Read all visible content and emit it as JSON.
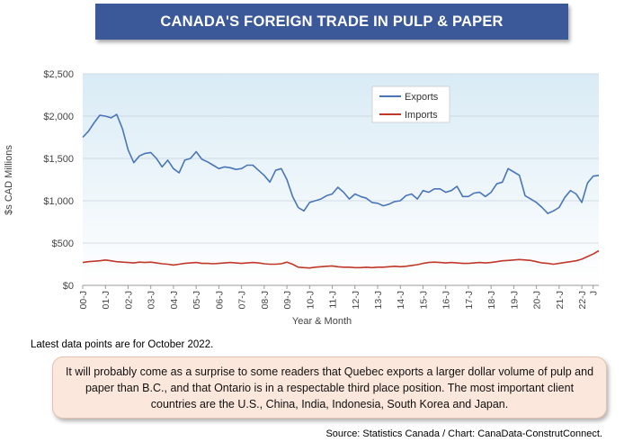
{
  "header": {
    "title": "CANADA'S FOREIGN TRADE IN PULP & PAPER"
  },
  "chart_data": {
    "type": "line",
    "title": "",
    "xlabel": "Year & Month",
    "ylabel": "$s CAD Millions",
    "ylim": [
      0,
      2500
    ],
    "yticks": [
      0,
      500,
      1000,
      1500,
      2000,
      2500
    ],
    "ytick_labels": [
      "$0",
      "$500",
      "$1,000",
      "$1,500",
      "$2,000",
      "$2,500"
    ],
    "x_start": "2000-01",
    "x_end": "2022-10",
    "x_tick_labels": [
      "00-J",
      "01-J",
      "02-J",
      "03-J",
      "04-J",
      "05-J",
      "06-J",
      "07-J",
      "08-J",
      "09-J",
      "10-J",
      "11-J",
      "12-J",
      "13-J",
      "14-J",
      "15-J",
      "16-J",
      "17-J",
      "18-J",
      "19-J",
      "20-J",
      "21-J",
      "22-J",
      "J"
    ],
    "grid": "horizontal",
    "legend_position": "top-center",
    "series": [
      {
        "name": "Exports",
        "color": "#4a76b8",
        "x": [
          "2000-01",
          "2000-04",
          "2000-07",
          "2000-10",
          "2001-01",
          "2001-04",
          "2001-07",
          "2001-10",
          "2002-01",
          "2002-04",
          "2002-07",
          "2002-10",
          "2003-01",
          "2003-04",
          "2003-07",
          "2003-10",
          "2004-01",
          "2004-04",
          "2004-07",
          "2004-10",
          "2005-01",
          "2005-04",
          "2005-07",
          "2005-10",
          "2006-01",
          "2006-04",
          "2006-07",
          "2006-10",
          "2007-01",
          "2007-04",
          "2007-07",
          "2007-10",
          "2008-01",
          "2008-04",
          "2008-07",
          "2008-10",
          "2009-01",
          "2009-04",
          "2009-07",
          "2009-10",
          "2010-01",
          "2010-04",
          "2010-07",
          "2010-10",
          "2011-01",
          "2011-04",
          "2011-07",
          "2011-10",
          "2012-01",
          "2012-04",
          "2012-07",
          "2012-10",
          "2013-01",
          "2013-04",
          "2013-07",
          "2013-10",
          "2014-01",
          "2014-04",
          "2014-07",
          "2014-10",
          "2015-01",
          "2015-04",
          "2015-07",
          "2015-10",
          "2016-01",
          "2016-04",
          "2016-07",
          "2016-10",
          "2017-01",
          "2017-04",
          "2017-07",
          "2017-10",
          "2018-01",
          "2018-04",
          "2018-07",
          "2018-10",
          "2019-01",
          "2019-04",
          "2019-07",
          "2019-10",
          "2020-01",
          "2020-04",
          "2020-07",
          "2020-10",
          "2021-01",
          "2021-04",
          "2021-07",
          "2021-10",
          "2022-01",
          "2022-04",
          "2022-07",
          "2022-10"
        ],
        "values": [
          1750,
          1820,
          1920,
          2010,
          2000,
          1980,
          2020,
          1850,
          1600,
          1450,
          1530,
          1560,
          1570,
          1500,
          1400,
          1480,
          1380,
          1330,
          1480,
          1500,
          1580,
          1490,
          1460,
          1420,
          1380,
          1400,
          1390,
          1370,
          1380,
          1420,
          1420,
          1360,
          1300,
          1220,
          1360,
          1380,
          1250,
          1050,
          920,
          880,
          980,
          1000,
          1020,
          1060,
          1080,
          1160,
          1100,
          1020,
          1080,
          1050,
          1030,
          980,
          970,
          940,
          960,
          990,
          1000,
          1060,
          1080,
          1020,
          1120,
          1100,
          1140,
          1140,
          1100,
          1120,
          1170,
          1050,
          1050,
          1090,
          1100,
          1050,
          1100,
          1200,
          1220,
          1380,
          1340,
          1300,
          1060,
          1020,
          980,
          920,
          850,
          880,
          920,
          1040,
          1120,
          1080,
          980,
          1210,
          1290,
          1300
        ]
      },
      {
        "name": "Imports",
        "color": "#c0392b",
        "x": [
          "2000-01",
          "2000-04",
          "2000-07",
          "2000-10",
          "2001-01",
          "2001-04",
          "2001-07",
          "2001-10",
          "2002-01",
          "2002-04",
          "2002-07",
          "2002-10",
          "2003-01",
          "2003-04",
          "2003-07",
          "2003-10",
          "2004-01",
          "2004-04",
          "2004-07",
          "2004-10",
          "2005-01",
          "2005-04",
          "2005-07",
          "2005-10",
          "2006-01",
          "2006-04",
          "2006-07",
          "2006-10",
          "2007-01",
          "2007-04",
          "2007-07",
          "2007-10",
          "2008-01",
          "2008-04",
          "2008-07",
          "2008-10",
          "2009-01",
          "2009-04",
          "2009-07",
          "2009-10",
          "2010-01",
          "2010-04",
          "2010-07",
          "2010-10",
          "2011-01",
          "2011-04",
          "2011-07",
          "2011-10",
          "2012-01",
          "2012-04",
          "2012-07",
          "2012-10",
          "2013-01",
          "2013-04",
          "2013-07",
          "2013-10",
          "2014-01",
          "2014-04",
          "2014-07",
          "2014-10",
          "2015-01",
          "2015-04",
          "2015-07",
          "2015-10",
          "2016-01",
          "2016-04",
          "2016-07",
          "2016-10",
          "2017-01",
          "2017-04",
          "2017-07",
          "2017-10",
          "2018-01",
          "2018-04",
          "2018-07",
          "2018-10",
          "2019-01",
          "2019-04",
          "2019-07",
          "2019-10",
          "2020-01",
          "2020-04",
          "2020-07",
          "2020-10",
          "2021-01",
          "2021-04",
          "2021-07",
          "2021-10",
          "2022-01",
          "2022-04",
          "2022-07",
          "2022-10"
        ],
        "values": [
          270,
          280,
          285,
          290,
          300,
          290,
          280,
          275,
          270,
          265,
          275,
          270,
          275,
          265,
          255,
          250,
          240,
          250,
          260,
          265,
          270,
          260,
          260,
          255,
          260,
          265,
          270,
          265,
          260,
          265,
          270,
          265,
          255,
          250,
          250,
          255,
          275,
          250,
          215,
          210,
          205,
          215,
          220,
          225,
          230,
          220,
          215,
          215,
          210,
          210,
          215,
          210,
          215,
          215,
          220,
          225,
          220,
          225,
          235,
          245,
          260,
          270,
          275,
          270,
          265,
          270,
          265,
          260,
          260,
          265,
          270,
          265,
          270,
          280,
          290,
          295,
          300,
          305,
          300,
          295,
          280,
          265,
          260,
          250,
          260,
          270,
          280,
          290,
          310,
          340,
          370,
          410
        ]
      }
    ]
  },
  "footnote": {
    "text": "Latest data points are for October 2022."
  },
  "callout": {
    "text": "It will probably come as a surprise to some readers that Quebec exports a larger dollar volume of pulp and paper than B.C., and that Ontario is in a respectable third place position. The most important client countries are the U.S., China, India, Indonesia, South Korea and Japan."
  },
  "source": {
    "text": "Source: Statistics Canada / Chart: CanaData-ConstrutConnect."
  }
}
